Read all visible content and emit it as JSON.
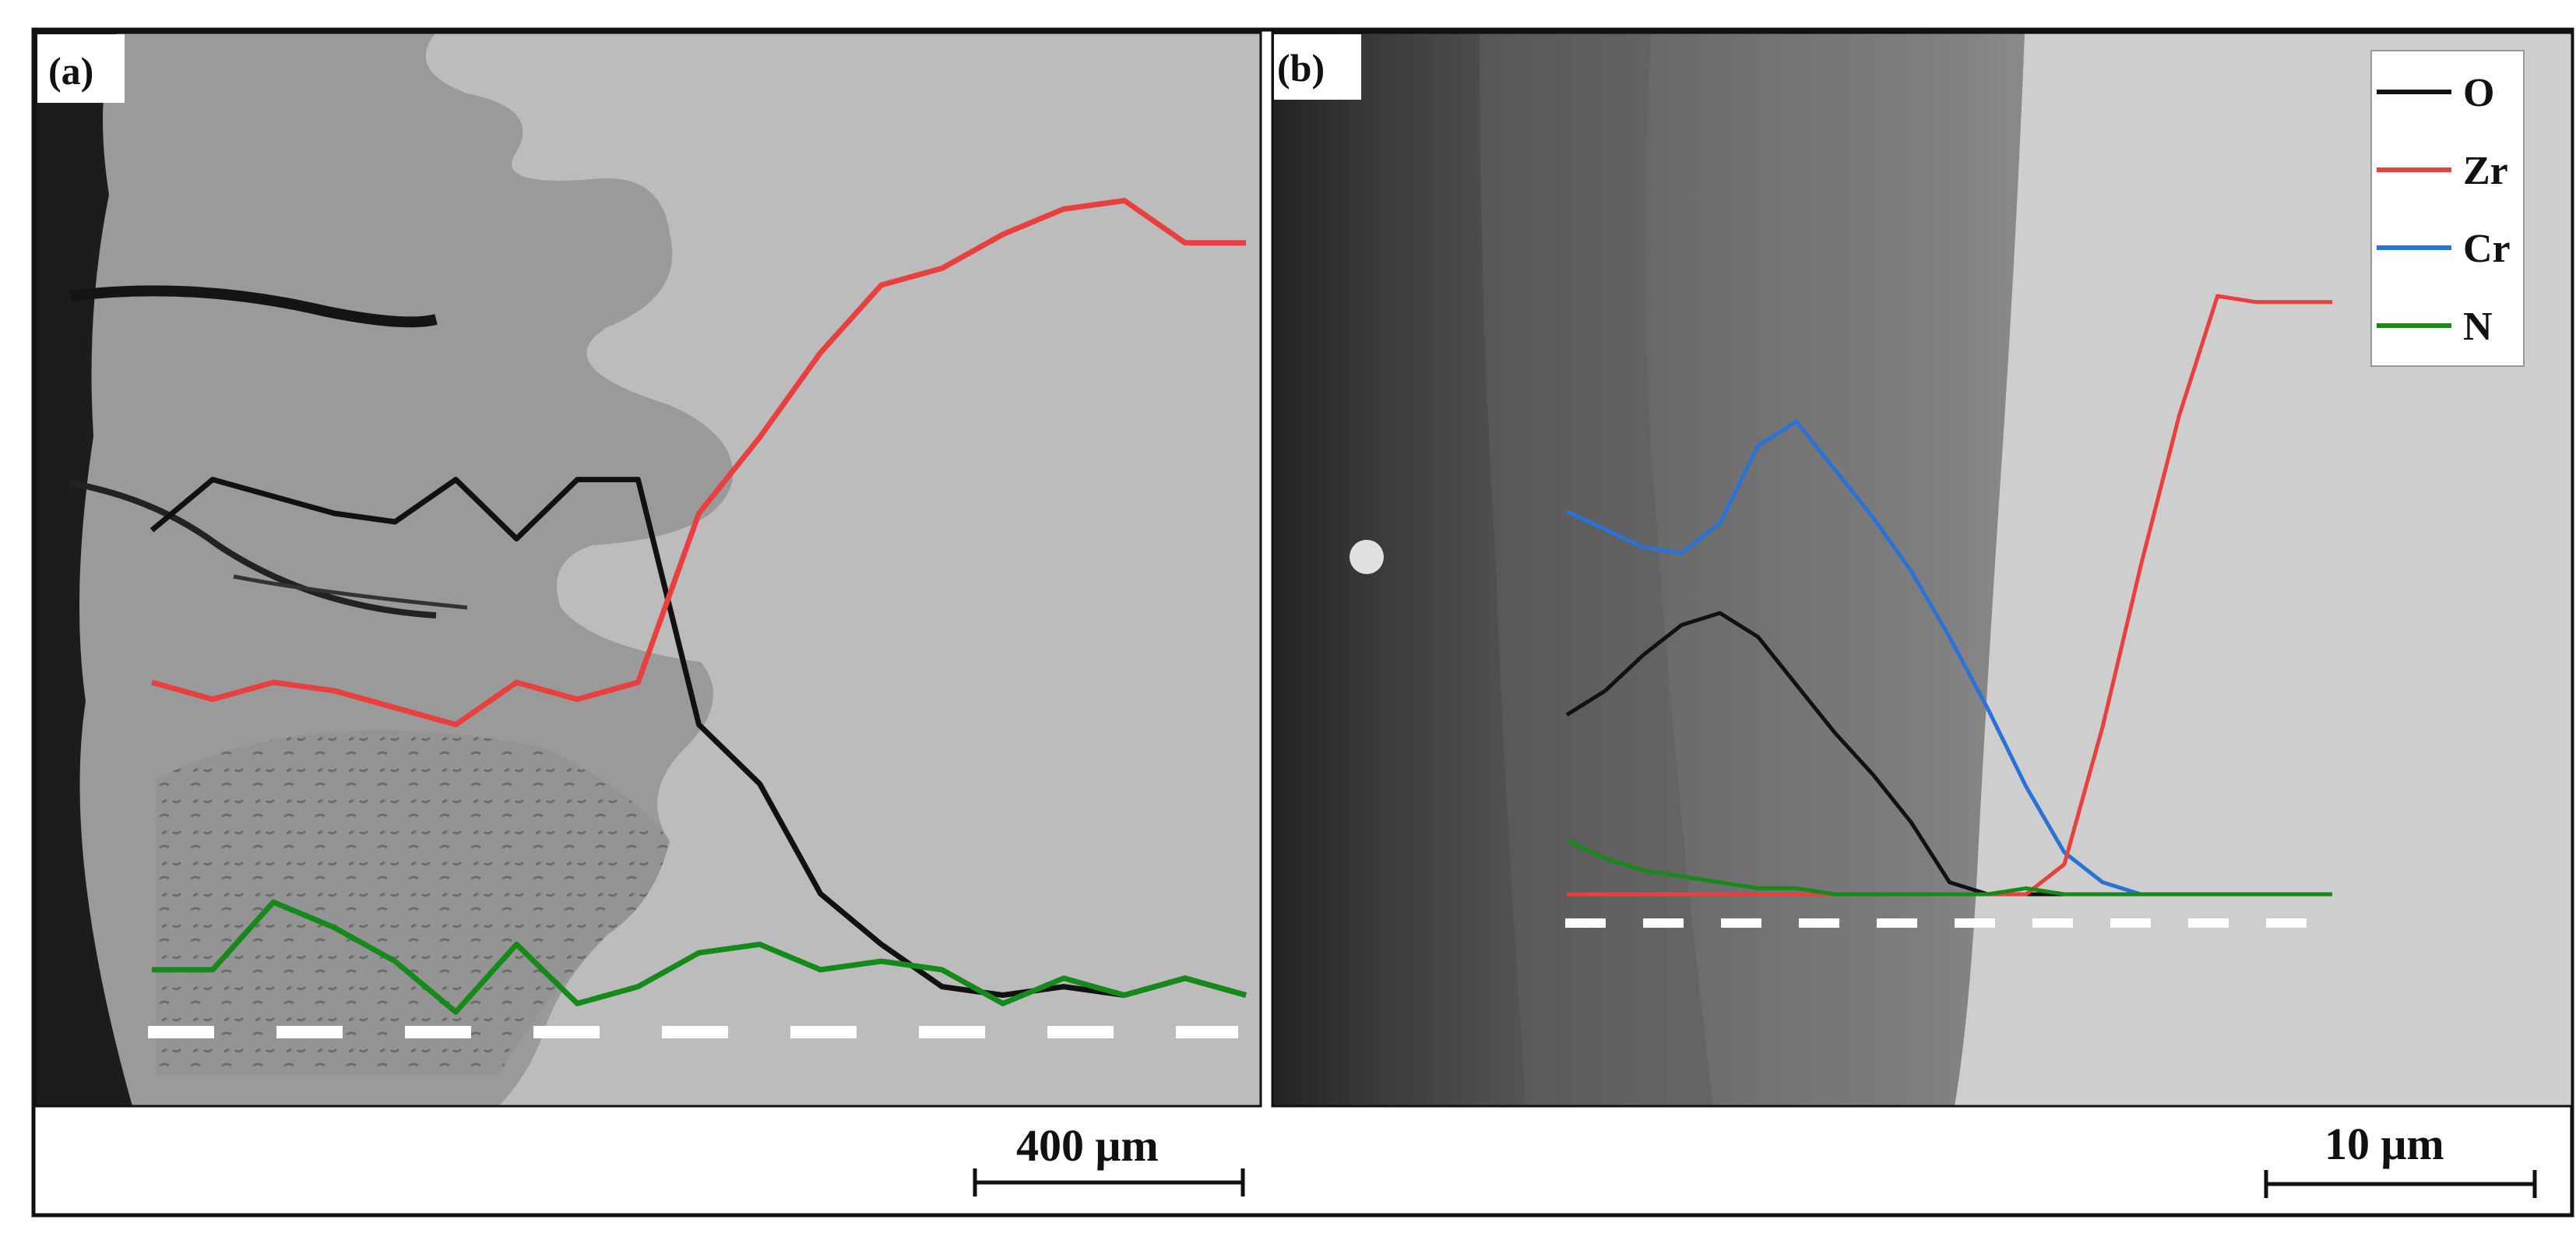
{
  "panels": [
    {
      "label": "(a)",
      "scale_bar": "400 μm",
      "profiles": {
        "O": [
          0.58,
          0.64,
          0.62,
          0.6,
          0.59,
          0.64,
          0.57,
          0.64,
          0.64,
          0.35,
          0.28,
          0.15,
          0.09,
          0.04,
          0.03,
          0.04,
          0.03,
          0.05,
          0.03
        ],
        "Zr": [
          0.4,
          0.38,
          0.4,
          0.39,
          0.37,
          0.35,
          0.4,
          0.38,
          0.4,
          0.6,
          0.69,
          0.79,
          0.87,
          0.89,
          0.93,
          0.96,
          0.97,
          0.92,
          0.92
        ],
        "Cr": [],
        "N": [
          0.06,
          0.06,
          0.14,
          0.11,
          0.07,
          0.01,
          0.09,
          0.02,
          0.04,
          0.08,
          0.09,
          0.06,
          0.07,
          0.06,
          0.02,
          0.05,
          0.03,
          0.05,
          0.03
        ]
      }
    },
    {
      "label": "(b)",
      "scale_bar": "10 μm",
      "profiles": {
        "O": [
          0.3,
          0.34,
          0.4,
          0.45,
          0.47,
          0.43,
          0.35,
          0.27,
          0.2,
          0.12,
          0.02,
          0.0,
          0.0,
          0.0,
          0.0,
          0.0,
          0.0,
          0.0,
          0.0,
          0.0,
          0.0
        ],
        "Zr": [
          0.0,
          0.0,
          0.0,
          0.0,
          0.0,
          0.0,
          0.0,
          0.0,
          0.0,
          0.0,
          0.0,
          0.0,
          0.0,
          0.05,
          0.28,
          0.55,
          0.8,
          1.0,
          0.99,
          0.99,
          0.99
        ],
        "Cr": [
          0.64,
          0.61,
          0.58,
          0.57,
          0.62,
          0.75,
          0.79,
          0.71,
          0.63,
          0.54,
          0.43,
          0.31,
          0.18,
          0.07,
          0.02,
          0.0,
          0.0,
          0.0,
          0.0,
          0.0,
          0.0
        ],
        "N": [
          0.09,
          0.06,
          0.04,
          0.03,
          0.02,
          0.01,
          0.01,
          0.0,
          0.0,
          0.0,
          0.0,
          0.0,
          0.01,
          0.0,
          0.0,
          0.0,
          0.0,
          0.0,
          0.0,
          0.0,
          0.0
        ]
      }
    }
  ],
  "legend": [
    {
      "name": "O",
      "color": "#111111"
    },
    {
      "name": "Zr",
      "color": "#e8403e"
    },
    {
      "name": "Cr",
      "color": "#2a73d6"
    },
    {
      "name": "N",
      "color": "#158a1b"
    }
  ],
  "colors": {
    "scan_line": "#ffffff",
    "frame": "#111111",
    "panel_a_coating": "#9a9a9a",
    "panel_a_substrate": "#bdbdbd",
    "panel_b_dark": "#4a4a4a",
    "panel_b_layer": "#7f7f7f",
    "panel_b_substrate": "#cfcfcf"
  }
}
